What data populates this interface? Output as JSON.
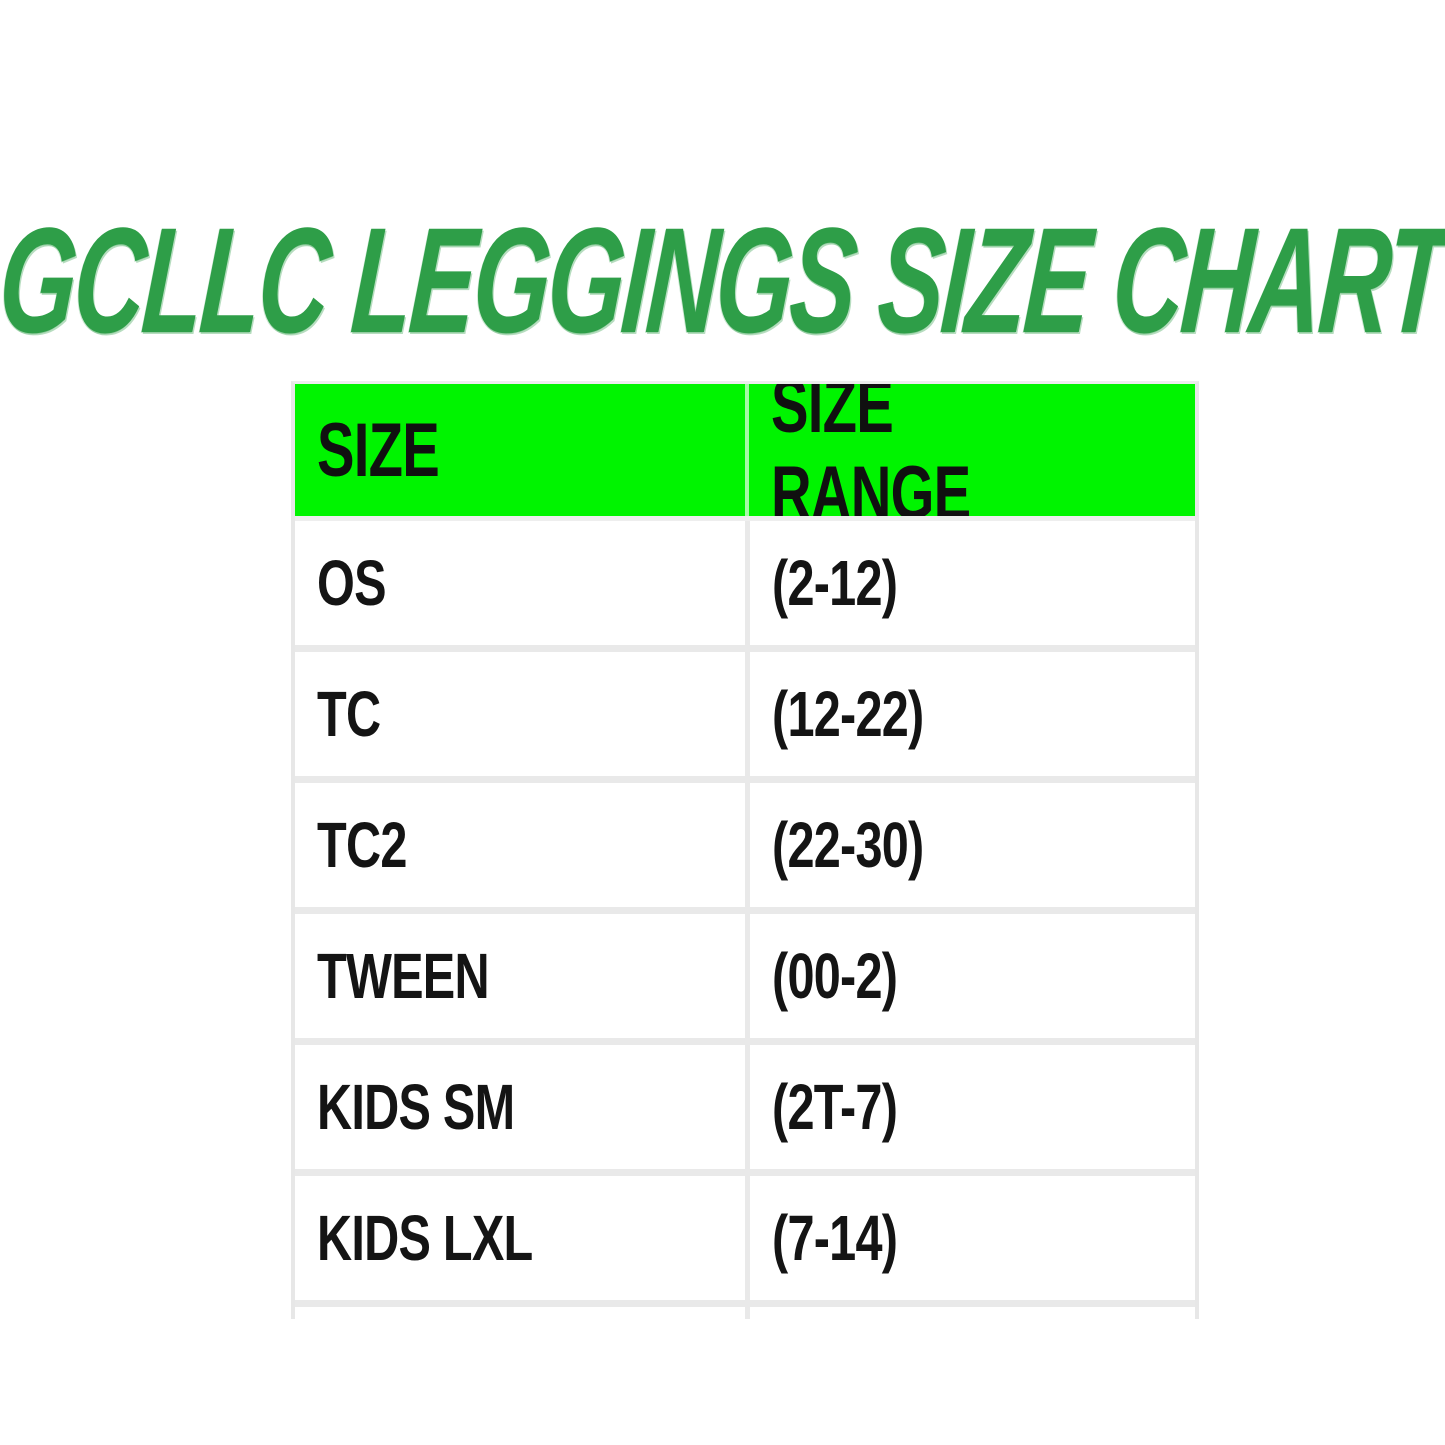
{
  "title": {
    "text": "GCLLC LEGGINGS SIZE CHART"
  },
  "colors": {
    "title_green": "#2E9E48",
    "header_green": "#00F400",
    "grid_gray": "#E9E9E9",
    "text_black": "#141414"
  },
  "chart_data": {
    "type": "table",
    "title": "GCLLC LEGGINGS SIZE CHART",
    "columns": [
      "SIZE",
      "SIZE RANGE"
    ],
    "rows": [
      [
        "OS",
        "(2-12)"
      ],
      [
        "TC",
        "(12-22)"
      ],
      [
        "TC2",
        "(22-30)"
      ],
      [
        "TWEEN",
        "(00-2)"
      ],
      [
        "KIDS SM",
        "(2T-7)"
      ],
      [
        "KIDS LXL",
        "(7-14)"
      ]
    ],
    "layout": {
      "header_background": "#00F400",
      "header_text_color": "#101010",
      "body_background": "#FFFFFF",
      "grid_color": "#E9E9E9",
      "bottom_row_cut_off": true
    }
  }
}
